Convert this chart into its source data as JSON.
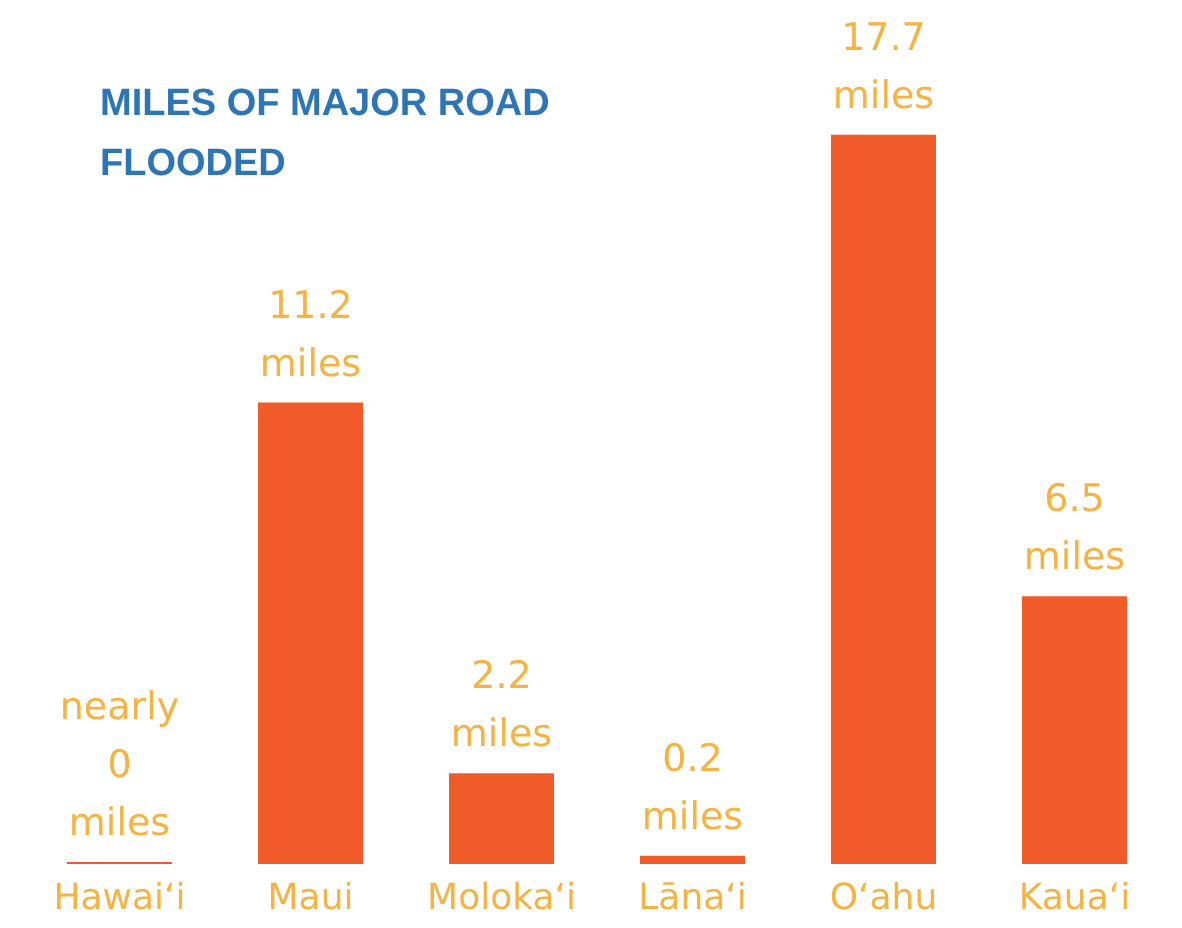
{
  "chart_data": {
    "type": "bar",
    "title": "MILES OF MAJOR ROAD FLOODED",
    "categories": [
      "Hawai‘i",
      "Maui",
      "Moloka‘i",
      "Lāna‘i",
      "O‘ahu",
      "Kaua‘i"
    ],
    "values": [
      0.05,
      11.2,
      2.2,
      0.2,
      17.7,
      6.5
    ],
    "value_labels": [
      "nearly 0 miles",
      "11.2 miles",
      "2.2 miles",
      "0.2 miles",
      "17.7 miles",
      "6.5 miles"
    ],
    "color": "#f15a29"
  }
}
